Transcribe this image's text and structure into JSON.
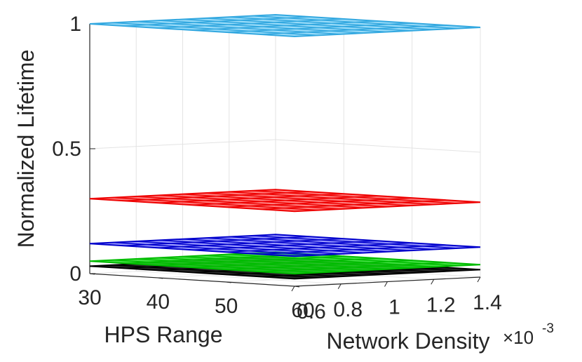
{
  "chart_data": {
    "type": "surface3d",
    "zlabel": "Normalized Lifetime",
    "xlabel": "HPS Range",
    "ylabel": "Network Density",
    "y_exponent_prefix": "×10",
    "y_exponent_power": "-3",
    "x_ticks": [
      "30",
      "40",
      "50",
      "60"
    ],
    "y_ticks": [
      "0.6",
      "0.8",
      "1",
      "1.2",
      "1.4"
    ],
    "z_ticks": [
      "0",
      "0.5",
      "1"
    ],
    "x_range": [
      30,
      60
    ],
    "y_range": [
      0.6,
      1.4
    ],
    "z_range": [
      0,
      1
    ],
    "grid": true,
    "series": [
      {
        "color": "#1e1e1e",
        "edge": "#000000",
        "level": 0.03,
        "alpha": 0.95
      },
      {
        "color": "#22dd22",
        "edge": "#00bb00",
        "level": 0.05,
        "alpha": 0.85
      },
      {
        "color": "#3a3aff",
        "edge": "#0000cc",
        "level": 0.12,
        "alpha": 0.5
      },
      {
        "color": "#ff2a2a",
        "edge": "#ee0000",
        "level": 0.3,
        "alpha": 0.6
      },
      {
        "color": "#8fd8f8",
        "edge": "#33a8e0",
        "level": 1.0,
        "alpha": 0.9
      }
    ]
  }
}
